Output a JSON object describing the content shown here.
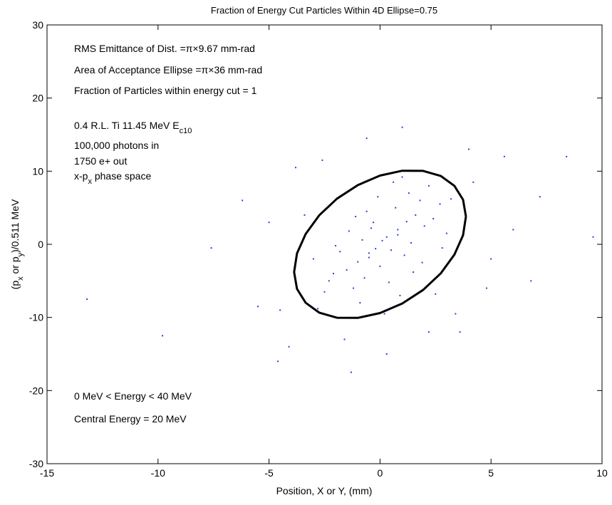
{
  "chart_data": {
    "type": "scatter",
    "title": "Fraction of Energy Cut Particles Within 4D Ellipse=0.75",
    "x_label": "Position, X or Y, (mm)",
    "y_label": [
      "(p",
      "x",
      " or p",
      "y",
      ")/0.511 MeV"
    ],
    "xlim": [
      -15,
      10
    ],
    "ylim": [
      -30,
      30
    ],
    "xticks": [
      -15,
      -10,
      -5,
      0,
      5,
      10
    ],
    "yticks": [
      -30,
      -20,
      -10,
      0,
      10,
      20,
      30
    ],
    "annotations": [
      [
        "RMS Emittance of Dist. =π×9.67 mm-rad"
      ],
      [
        "Area of Acceptance Ellipse =π×36 mm-rad"
      ],
      [
        "Fraction of Particles within energy cut = 1"
      ],
      [
        "0.4 R.L. Ti 11.45 MeV E",
        "c10"
      ],
      [
        "100,000 photons in"
      ],
      [
        " 1750 e+ out"
      ],
      [
        "x-p",
        "x",
        " phase space"
      ],
      [
        "0 MeV < Energy < 40 MeV"
      ],
      [
        "Central Energy = 20 MeV"
      ]
    ],
    "series": [
      {
        "kind": "points",
        "color": "#3040c8",
        "x": [
          0.1,
          -0.5,
          0.8,
          1.2,
          -1.0,
          0.3,
          -0.2,
          1.6,
          -1.5,
          2.0,
          0.5,
          -0.8,
          1.1,
          -0.3,
          0.7,
          2.4,
          -2.1,
          1.8,
          -1.2,
          0.0,
          0.4,
          -0.6,
          1.3,
          -1.8,
          2.7,
          -2.5,
          0.9,
          -0.1,
          1.5,
          -0.9,
          3.0,
          -3.0,
          2.2,
          -2.3,
          0.6,
          -0.4,
          1.9,
          -1.4,
          2.8,
          -2.8,
          0.2,
          1.0,
          -0.7,
          1.4,
          -1.1,
          2.5,
          -2.0,
          0.8,
          -0.5,
          3.2,
          -3.4,
          4.2,
          -4.5,
          5.0,
          -5.5,
          6.0,
          -6.2,
          3.6,
          -3.8,
          4.8,
          -4.1,
          5.6,
          -5.0,
          7.2,
          -7.6,
          6.8,
          -9.8,
          8.4,
          -13.2,
          9.6,
          4.0,
          -4.6,
          1.0,
          -1.3,
          2.2,
          -0.6,
          3.4,
          -2.6,
          0.3,
          -1.6
        ],
        "values": [
          0.5,
          -1.2,
          2.0,
          3.1,
          -2.4,
          1.0,
          -0.6,
          4.0,
          -3.5,
          2.5,
          -0.8,
          0.6,
          -1.5,
          3.0,
          5.0,
          3.5,
          -4.0,
          6.0,
          -6.0,
          -3.0,
          -5.2,
          4.5,
          7.0,
          -1.0,
          5.5,
          -6.5,
          -7.0,
          6.5,
          -3.8,
          -8.0,
          1.5,
          -2.0,
          8.0,
          -5.0,
          8.5,
          2.2,
          -2.5,
          1.8,
          -0.5,
          -8.8,
          -9.5,
          9.2,
          -4.6,
          0.2,
          3.8,
          -6.8,
          -0.2,
          1.3,
          -1.8,
          6.2,
          4.0,
          8.5,
          -9.0,
          -2.0,
          -8.5,
          2.0,
          6.0,
          -12.0,
          10.5,
          -6.0,
          -14.0,
          12.0,
          3.0,
          6.5,
          -0.5,
          -5.0,
          -12.5,
          12.0,
          -7.5,
          1.0,
          13.0,
          -16.0,
          16.0,
          -17.5,
          -12.0,
          14.5,
          -9.5,
          11.5,
          -15.0,
          -13.0
        ]
      },
      {
        "kind": "line",
        "color": "#000000",
        "x": [
          3.87,
          3.74,
          3.35,
          2.74,
          1.94,
          1.0,
          0,
          -1.0,
          -1.94,
          -2.74,
          -3.35,
          -3.74,
          -3.87,
          -3.74,
          -3.35,
          -2.74,
          -1.94,
          -1.0,
          0,
          1.0,
          1.94,
          2.74,
          3.35,
          3.74,
          3.87
        ],
        "values": [
          3.8,
          6.1,
          7.99,
          9.34,
          10.04,
          10.06,
          9.4,
          8.1,
          6.24,
          3.96,
          1.41,
          -1.24,
          -3.8,
          -6.1,
          -7.99,
          -9.34,
          -10.04,
          -10.06,
          -9.4,
          -8.1,
          -6.24,
          -3.96,
          -1.41,
          1.24,
          3.8
        ]
      }
    ]
  }
}
